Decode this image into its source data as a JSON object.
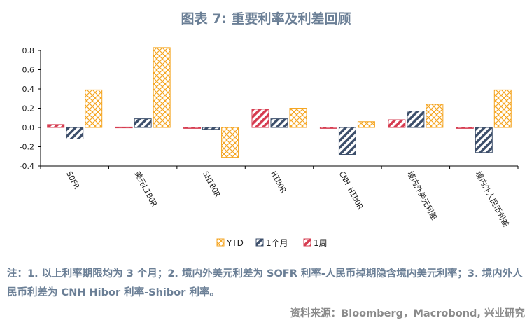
{
  "title": "图表 7:  重要利率及利差回顾",
  "note": "注：1. 以上利率期限均为 3 个月；2. 境内外美元利差为 SOFR 利率-人民币掉期隐含境内美元利率；3. 境内外人民币利差为 CNH Hibor 利率-Shibor 利率。",
  "source": "资料来源：Bloomberg，Macrobond, 兴业研究",
  "colors": {
    "ytd": "#f5a623",
    "month": "#3d4f6b",
    "week": "#d63c50",
    "title": "#6b7f96"
  },
  "chart_data": {
    "type": "bar",
    "categories": [
      "SOFR",
      "美元LIBOR",
      "SHIBOR",
      "HIBOR",
      "CNH HIBOR",
      "境内外美元利差",
      "境内外人民币利差"
    ],
    "series": [
      {
        "name": "1周",
        "key": "week",
        "values": [
          0.03,
          0.0,
          -0.01,
          0.19,
          -0.01,
          0.08,
          -0.01
        ]
      },
      {
        "name": "1个月",
        "key": "month",
        "values": [
          -0.12,
          0.09,
          -0.02,
          0.09,
          -0.28,
          0.17,
          -0.26
        ]
      },
      {
        "name": "YTD",
        "key": "ytd",
        "values": [
          0.39,
          0.83,
          -0.31,
          0.2,
          0.06,
          0.24,
          0.39
        ]
      }
    ],
    "legend_order": [
      "YTD",
      "1个月",
      "1周"
    ],
    "legend_position": "bottom-center",
    "ylim": [
      -0.4,
      0.8
    ],
    "yticks": [
      -0.4,
      -0.2,
      0.0,
      0.2,
      0.4,
      0.6,
      0.8
    ],
    "grid": false
  }
}
